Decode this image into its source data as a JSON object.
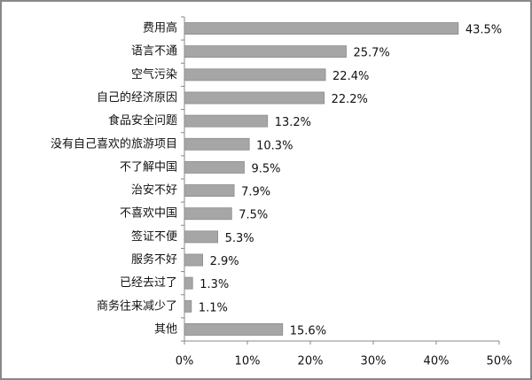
{
  "chart_data": {
    "type": "bar",
    "orientation": "horizontal",
    "categories": [
      "费用高",
      "语言不通",
      "空气污染",
      "自己的经济原因",
      "食品安全问题",
      "没有自己喜欢的旅游项目",
      "不了解中国",
      "治安不好",
      "不喜欢中国",
      "签证不便",
      "服务不好",
      "已经去过了",
      "商务往来减少了",
      "其他"
    ],
    "values": [
      43.5,
      25.7,
      22.4,
      22.2,
      13.2,
      10.3,
      9.5,
      7.9,
      7.5,
      5.3,
      2.9,
      1.3,
      1.1,
      15.6
    ],
    "value_labels": [
      "43.5%",
      "25.7%",
      "22.4%",
      "22.2%",
      "13.2%",
      "10.3%",
      "9.5%",
      "7.9%",
      "7.5%",
      "5.3%",
      "2.9%",
      "1.3%",
      "1.1%",
      "15.6%"
    ],
    "color": "#a6a6a6",
    "xlim": [
      0,
      50
    ],
    "xticks": [
      {
        "value": 0,
        "label": "0%"
      },
      {
        "value": 10,
        "label": "10%"
      },
      {
        "value": 20,
        "label": "20%"
      },
      {
        "value": 30,
        "label": "30%"
      },
      {
        "value": 40,
        "label": "40%"
      },
      {
        "value": 50,
        "label": "50%"
      }
    ]
  }
}
